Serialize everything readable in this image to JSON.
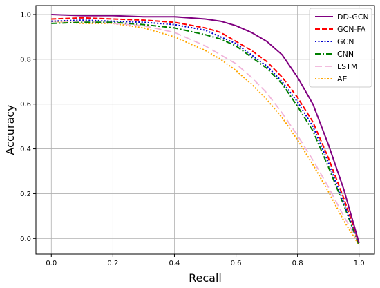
{
  "chart_data": {
    "type": "line",
    "title": "",
    "xlabel": "Recall",
    "ylabel": "Accuracy",
    "xlim": [
      -0.05,
      1.05
    ],
    "ylim": [
      -0.07,
      1.04
    ],
    "xticks": [
      0.0,
      0.2,
      0.4,
      0.6,
      0.8,
      1.0
    ],
    "yticks": [
      0.0,
      0.2,
      0.4,
      0.6,
      0.8,
      1.0
    ],
    "xtick_labels": [
      "0.0",
      "0.2",
      "0.4",
      "0.6",
      "0.8",
      "1.0"
    ],
    "ytick_labels": [
      "0.0",
      "0.2",
      "0.4",
      "0.6",
      "0.8",
      "1.0"
    ],
    "grid": true,
    "legend": "top-right",
    "series": [
      {
        "name": "DD-GCN",
        "color": "#800080",
        "dash": "solid",
        "x": [
          0.0,
          0.1,
          0.2,
          0.3,
          0.4,
          0.5,
          0.55,
          0.6,
          0.65,
          0.7,
          0.75,
          0.8,
          0.85,
          0.9,
          0.95,
          1.0
        ],
        "y": [
          1.0,
          0.995,
          0.995,
          0.99,
          0.99,
          0.98,
          0.97,
          0.95,
          0.92,
          0.88,
          0.82,
          0.72,
          0.6,
          0.42,
          0.22,
          -0.02
        ]
      },
      {
        "name": "GCN-FA",
        "color": "#ff0000",
        "dash": "dashed",
        "x": [
          0.0,
          0.1,
          0.2,
          0.3,
          0.4,
          0.5,
          0.55,
          0.6,
          0.65,
          0.7,
          0.75,
          0.8,
          0.85,
          0.9,
          0.95,
          1.0
        ],
        "y": [
          0.98,
          0.985,
          0.98,
          0.975,
          0.965,
          0.94,
          0.92,
          0.88,
          0.84,
          0.79,
          0.72,
          0.63,
          0.52,
          0.36,
          0.18,
          -0.02
        ]
      },
      {
        "name": "GCN",
        "color": "#0000cd",
        "dash": "dotted",
        "x": [
          0.0,
          0.1,
          0.2,
          0.3,
          0.4,
          0.5,
          0.55,
          0.6,
          0.65,
          0.7,
          0.75,
          0.8,
          0.85,
          0.9,
          0.95,
          1.0
        ],
        "y": [
          0.97,
          0.975,
          0.97,
          0.965,
          0.955,
          0.93,
          0.9,
          0.87,
          0.82,
          0.77,
          0.7,
          0.61,
          0.5,
          0.34,
          0.16,
          -0.02
        ]
      },
      {
        "name": "CNN",
        "color": "#007f00",
        "dash": "dashdot",
        "x": [
          0.0,
          0.1,
          0.2,
          0.3,
          0.4,
          0.5,
          0.55,
          0.6,
          0.65,
          0.7,
          0.75,
          0.8,
          0.85,
          0.9,
          0.95,
          1.0
        ],
        "y": [
          0.96,
          0.965,
          0.965,
          0.955,
          0.94,
          0.91,
          0.89,
          0.86,
          0.81,
          0.76,
          0.69,
          0.59,
          0.48,
          0.32,
          0.15,
          -0.03
        ]
      },
      {
        "name": "LSTM",
        "color": "#f0b3d9",
        "dash": "longdash",
        "x": [
          0.0,
          0.1,
          0.2,
          0.3,
          0.4,
          0.5,
          0.55,
          0.6,
          0.65,
          0.7,
          0.75,
          0.8,
          0.85,
          0.9,
          0.95,
          1.0
        ],
        "y": [
          0.97,
          0.97,
          0.96,
          0.95,
          0.92,
          0.86,
          0.82,
          0.78,
          0.72,
          0.65,
          0.56,
          0.46,
          0.35,
          0.23,
          0.1,
          -0.02
        ]
      },
      {
        "name": "AE",
        "color": "#ffa500",
        "dash": "dotted",
        "x": [
          0.0,
          0.1,
          0.2,
          0.3,
          0.4,
          0.5,
          0.55,
          0.6,
          0.65,
          0.7,
          0.75,
          0.8,
          0.85,
          0.9,
          0.95,
          1.0
        ],
        "y": [
          0.97,
          0.96,
          0.96,
          0.94,
          0.9,
          0.84,
          0.8,
          0.75,
          0.69,
          0.62,
          0.54,
          0.44,
          0.33,
          0.21,
          0.08,
          -0.03
        ]
      }
    ]
  }
}
